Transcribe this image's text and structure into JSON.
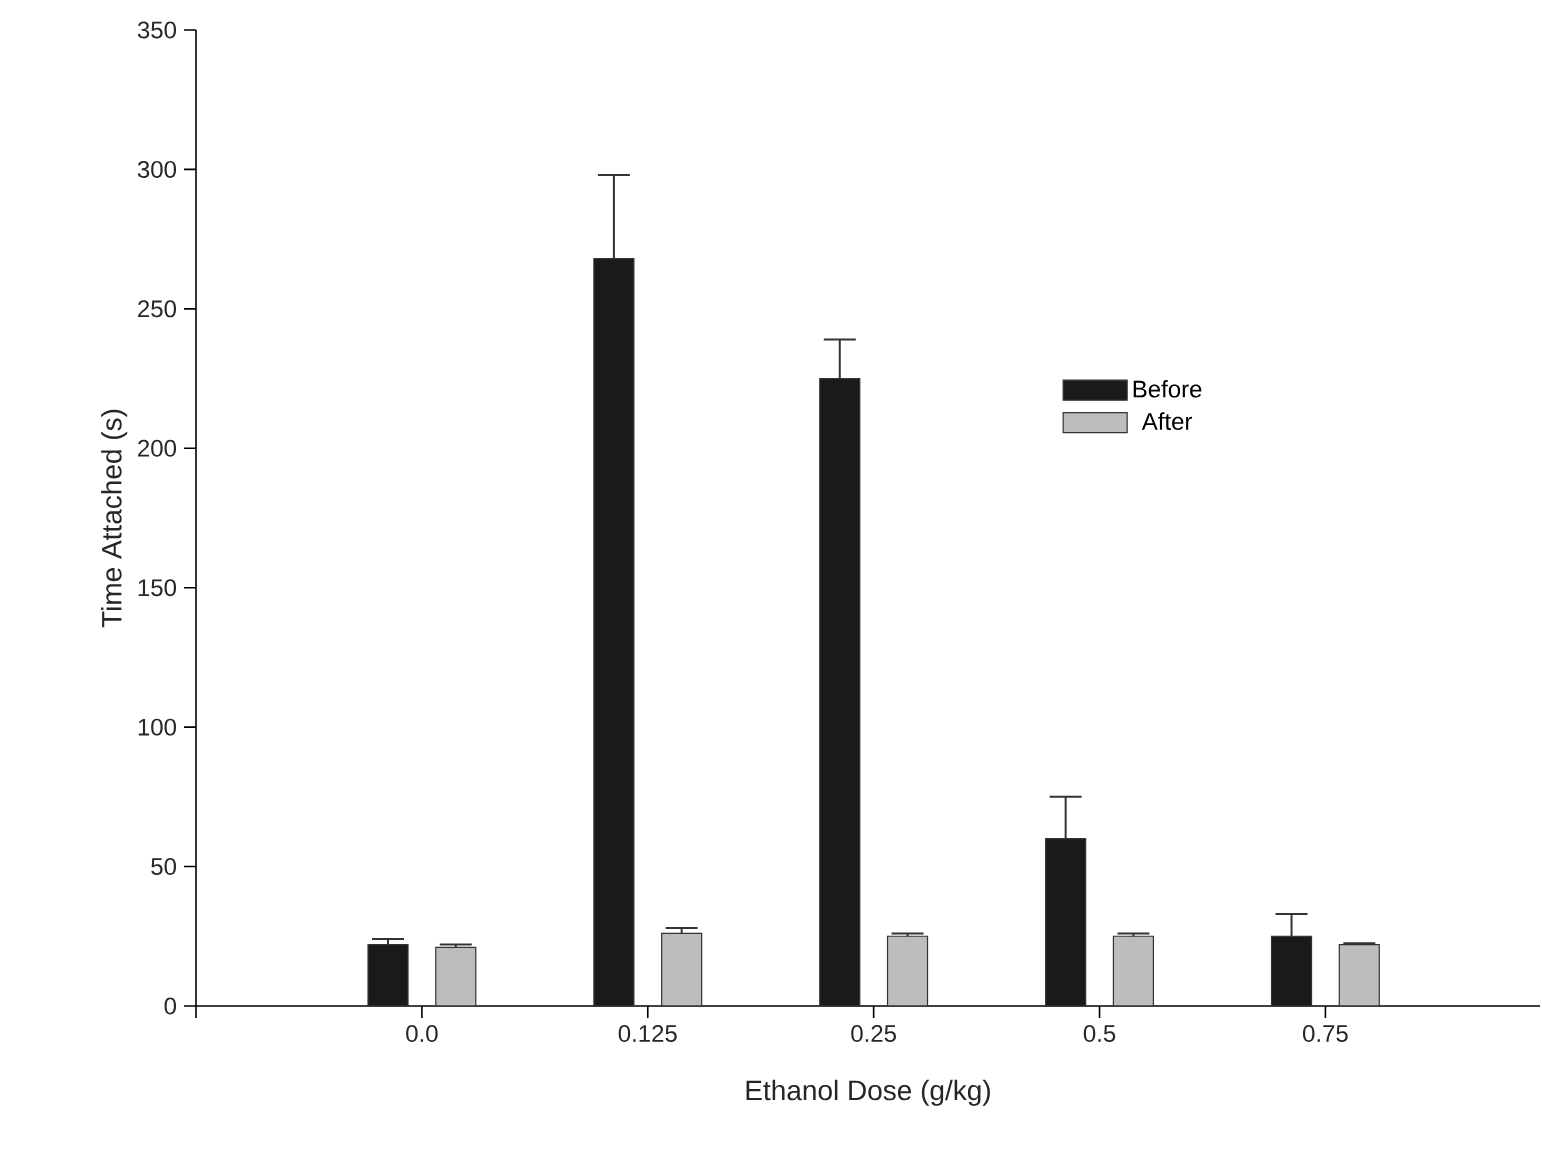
{
  "chart_data": {
    "type": "bar",
    "xlabel": "Ethanol Dose (g/kg)",
    "ylabel": "Time Attached (s)",
    "categories": [
      "0.0",
      "0.125",
      "0.25",
      "0.5",
      "0.75"
    ],
    "series": [
      {
        "name": "Before",
        "color": "#1a1a1a",
        "values": [
          22,
          268,
          225,
          60,
          25
        ],
        "errors": [
          2,
          30,
          14,
          15,
          8
        ]
      },
      {
        "name": "After",
        "color": "#bdbdbd",
        "values": [
          21,
          26,
          25,
          25,
          22
        ],
        "errors": [
          1,
          2,
          1,
          1,
          0.5
        ]
      }
    ],
    "ylim": [
      0,
      350
    ],
    "yticks": [
      0,
      50,
      100,
      150,
      200,
      250,
      300,
      350
    ],
    "legend": "right",
    "grid": false
  }
}
